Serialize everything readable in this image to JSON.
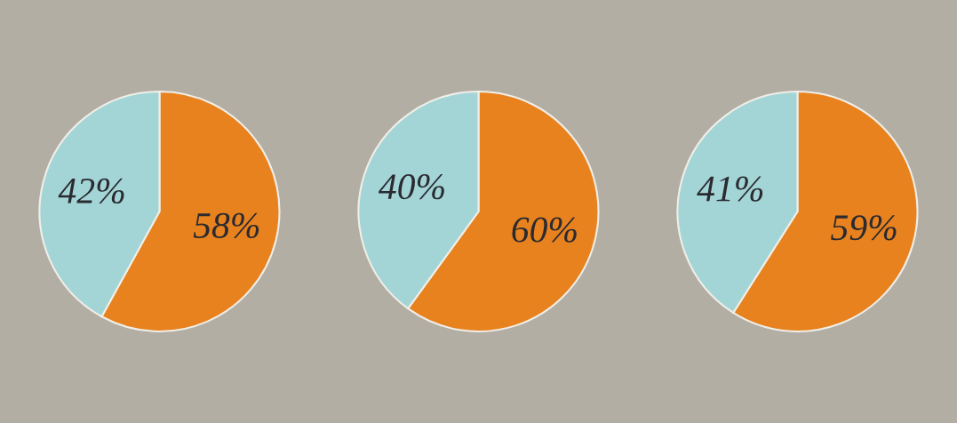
{
  "chart_data": [
    {
      "type": "pie",
      "categories": [
        null,
        null
      ],
      "values": [
        58,
        42
      ],
      "colors": [
        "#e8821e",
        "#a3d5d6"
      ],
      "value_labels": [
        "58%",
        "42%"
      ]
    },
    {
      "type": "pie",
      "categories": [
        null,
        null
      ],
      "values": [
        60,
        40
      ],
      "colors": [
        "#e8821e",
        "#a3d5d6"
      ],
      "value_labels": [
        "60%",
        "40%"
      ]
    },
    {
      "type": "pie",
      "categories": [
        null,
        null
      ],
      "values": [
        59,
        41
      ],
      "colors": [
        "#e8821e",
        "#a3d5d6"
      ],
      "value_labels": [
        "59%",
        "41%"
      ]
    }
  ]
}
